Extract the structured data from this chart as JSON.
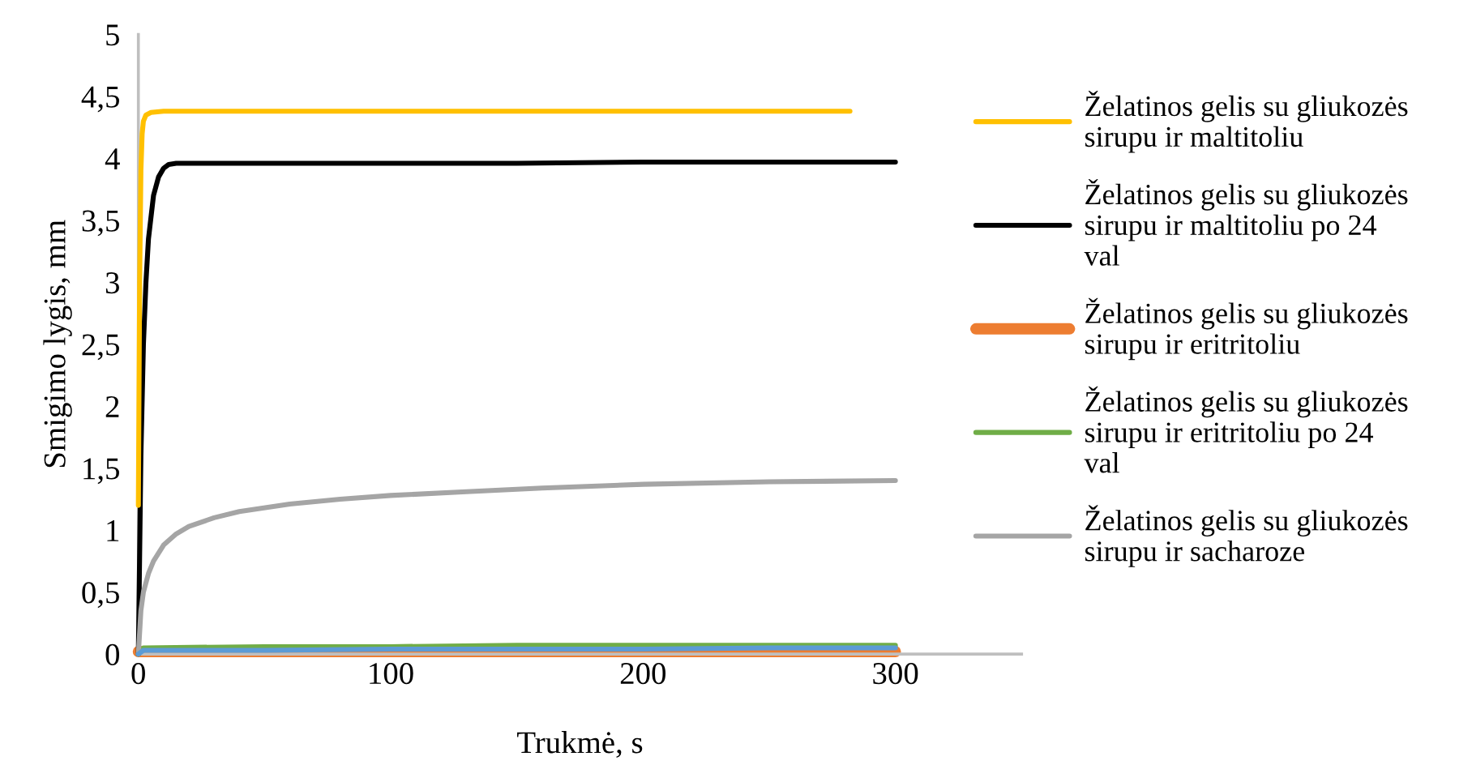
{
  "chart_data": {
    "type": "line",
    "xlabel": "Trukmė, s",
    "ylabel": "Smigimo lygis, mm",
    "xlim": [
      0,
      350
    ],
    "xticks": [
      0,
      100,
      200,
      300
    ],
    "ylim": [
      0,
      5
    ],
    "yticks": [
      0,
      {
        "value": 0.5,
        "label": "0,5"
      },
      1,
      {
        "value": 1.5,
        "label": "1,5"
      },
      2,
      {
        "value": 2.5,
        "label": "2,5"
      },
      3,
      {
        "value": 3.5,
        "label": "3,5"
      },
      4,
      {
        "value": 4.5,
        "label": "4,5"
      },
      5
    ],
    "grid": false,
    "legend": "right",
    "marker": "none",
    "line_style": "solid",
    "series": [
      {
        "name": "Želatinos gelis su gliukozės\nsirupu ir maltitoliu",
        "color": "#ffc000",
        "x": [
          0,
          0.5,
          1,
          1.5,
          2,
          3,
          5,
          10,
          50,
          100,
          150,
          200,
          250,
          282
        ],
        "values": [
          1.2,
          3.0,
          3.9,
          4.2,
          4.3,
          4.35,
          4.37,
          4.38,
          4.38,
          4.38,
          4.38,
          4.38,
          4.38,
          4.38
        ]
      },
      {
        "name": "Želatinos gelis su gliukozės\nsirupu ir maltitoliu po 24\nval",
        "color": "#000000",
        "x": [
          0,
          1,
          2,
          3,
          4,
          6,
          8,
          10,
          12,
          15,
          50,
          100,
          150,
          200,
          250,
          300
        ],
        "values": [
          0,
          1.6,
          2.5,
          3.0,
          3.35,
          3.7,
          3.85,
          3.92,
          3.95,
          3.96,
          3.96,
          3.96,
          3.96,
          3.97,
          3.97,
          3.97
        ]
      },
      {
        "name": "Želatinos gelis su gliukozės\nsirupu ir eritritoliu",
        "color": "#ed7d31",
        "x": [
          0,
          50,
          100,
          150,
          200,
          250,
          300
        ],
        "values": [
          0.02,
          0.02,
          0.02,
          0.02,
          0.02,
          0.02,
          0.02
        ]
      },
      {
        "name": "Želatinos gelis su gliukozės\nsirupu ir eritritoliu po 24\nval",
        "color": "#70ad47",
        "x": [
          0,
          2,
          50,
          100,
          150,
          200,
          250,
          300
        ],
        "values": [
          0,
          0.05,
          0.06,
          0.06,
          0.07,
          0.07,
          0.07,
          0.07
        ]
      },
      {
        "name": "Želatinos gelis su gliukozės\nsirupu ir sacharoze",
        "color": "#a5a5a5",
        "x": [
          0,
          1,
          2,
          4,
          6,
          10,
          15,
          20,
          30,
          40,
          60,
          80,
          100,
          130,
          160,
          200,
          250,
          300
        ],
        "values": [
          0,
          0.35,
          0.5,
          0.65,
          0.75,
          0.88,
          0.97,
          1.03,
          1.1,
          1.15,
          1.21,
          1.25,
          1.28,
          1.31,
          1.34,
          1.37,
          1.39,
          1.4
        ]
      },
      {
        "color": "#5b9bd5",
        "x": [
          0,
          2,
          50,
          100,
          150,
          200,
          250,
          300
        ],
        "values": [
          0,
          0.03,
          0.03,
          0.04,
          0.04,
          0.04,
          0.05,
          0.05
        ]
      }
    ]
  }
}
